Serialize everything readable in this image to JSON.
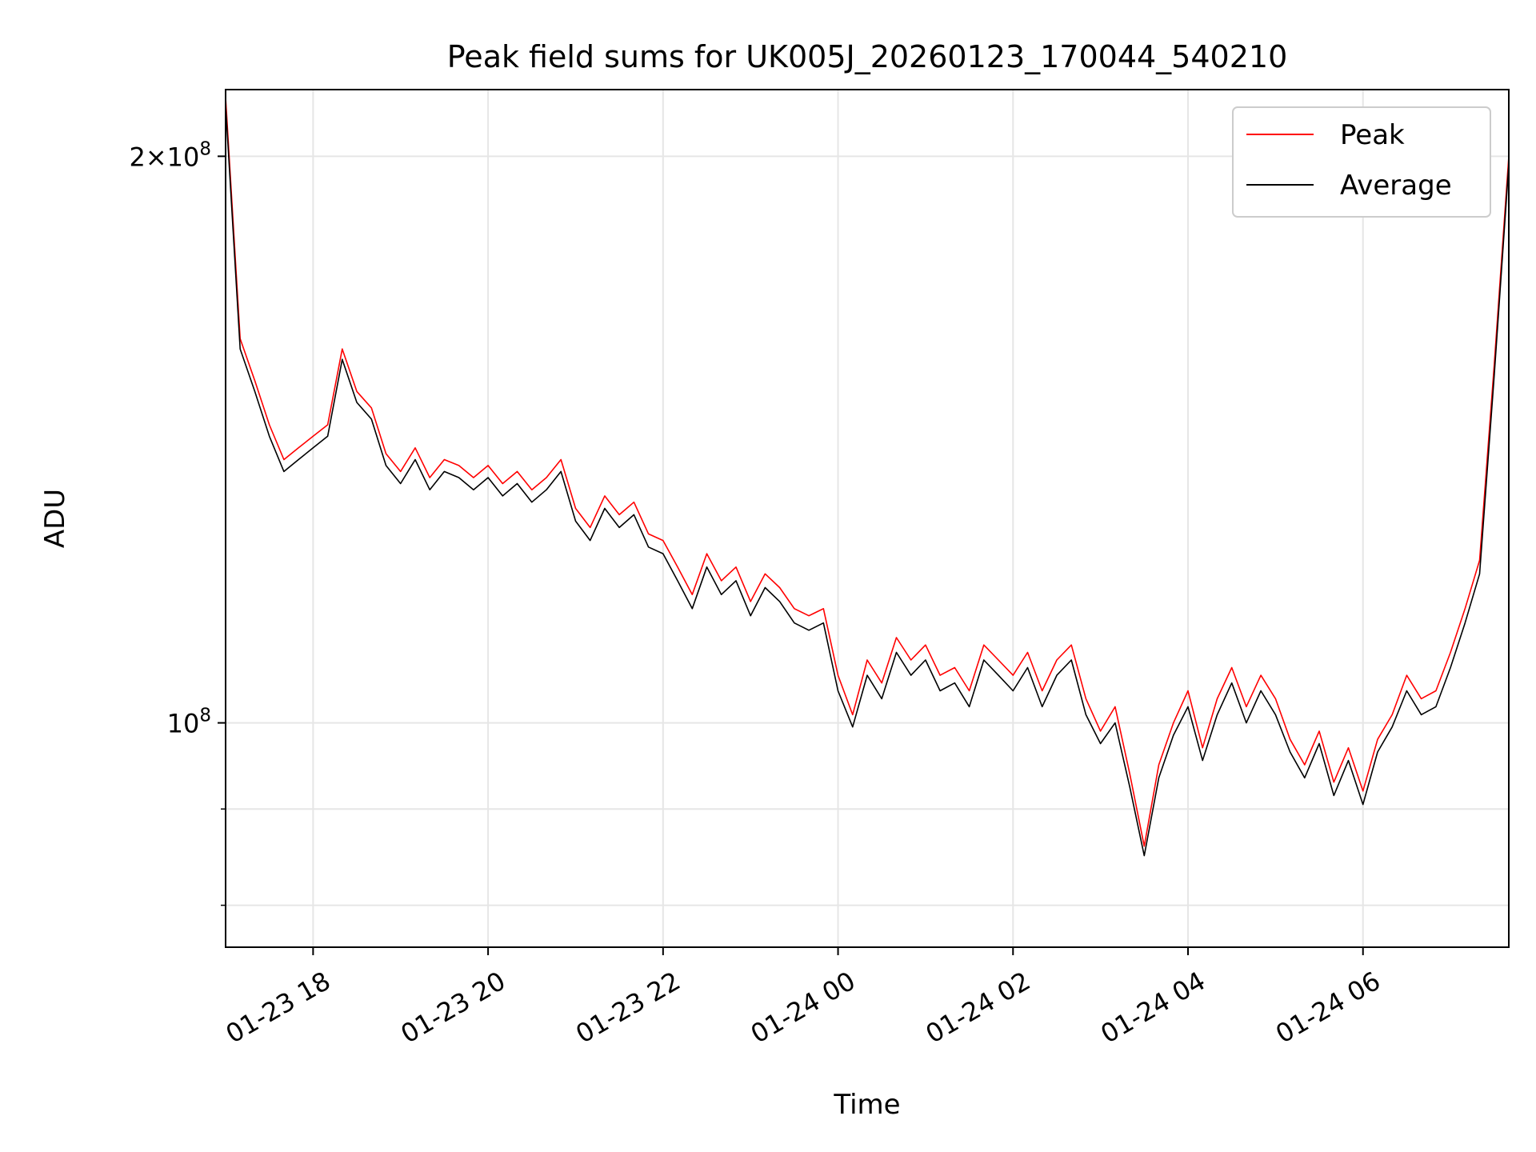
{
  "chart_data": {
    "type": "line",
    "title": "Peak field sums for UK005J_20260123_170044_540210",
    "xlabel": "Time",
    "ylabel": "ADU",
    "x_axis": {
      "kind": "datetime",
      "range": [
        "2026-01-23 17:00",
        "2026-01-24 07:40"
      ],
      "ticks": [
        {
          "at": "2026-01-23 18:00",
          "label": "01-23 18"
        },
        {
          "at": "2026-01-23 20:00",
          "label": "01-23 20"
        },
        {
          "at": "2026-01-23 22:00",
          "label": "01-23 22"
        },
        {
          "at": "2026-01-24 00:00",
          "label": "01-24 00"
        },
        {
          "at": "2026-01-24 02:00",
          "label": "01-24 02"
        },
        {
          "at": "2026-01-24 04:00",
          "label": "01-24 04"
        },
        {
          "at": "2026-01-24 06:00",
          "label": "01-24 06"
        }
      ]
    },
    "y_axis": {
      "scale": "log",
      "range": [
        76000000,
        217000000
      ],
      "labeled_ticks": [
        {
          "value": 100000000,
          "label": "10^8"
        },
        {
          "value": 200000000,
          "label": "2×10^8"
        }
      ],
      "minor_ticks": [
        90000000,
        80000000
      ]
    },
    "grid": true,
    "legend": {
      "placement": "top-right"
    },
    "colors": {
      "Peak": "#ff0000",
      "Average": "#000000",
      "grid": "#e6e6e6"
    },
    "x": [
      "2026-01-23 17:00",
      "2026-01-23 17:10",
      "2026-01-23 17:20",
      "2026-01-23 17:30",
      "2026-01-23 17:40",
      "2026-01-23 17:50",
      "2026-01-23 18:00",
      "2026-01-23 18:10",
      "2026-01-23 18:20",
      "2026-01-23 18:30",
      "2026-01-23 18:40",
      "2026-01-23 18:50",
      "2026-01-23 19:00",
      "2026-01-23 19:10",
      "2026-01-23 19:20",
      "2026-01-23 19:30",
      "2026-01-23 19:40",
      "2026-01-23 19:50",
      "2026-01-23 20:00",
      "2026-01-23 20:10",
      "2026-01-23 20:20",
      "2026-01-23 20:30",
      "2026-01-23 20:40",
      "2026-01-23 20:50",
      "2026-01-23 21:00",
      "2026-01-23 21:10",
      "2026-01-23 21:20",
      "2026-01-23 21:30",
      "2026-01-23 21:40",
      "2026-01-23 21:50",
      "2026-01-23 22:00",
      "2026-01-23 22:10",
      "2026-01-23 22:20",
      "2026-01-23 22:30",
      "2026-01-23 22:40",
      "2026-01-23 22:50",
      "2026-01-23 23:00",
      "2026-01-23 23:10",
      "2026-01-23 23:20",
      "2026-01-23 23:30",
      "2026-01-23 23:40",
      "2026-01-23 23:50",
      "2026-01-24 00:00",
      "2026-01-24 00:10",
      "2026-01-24 00:20",
      "2026-01-24 00:30",
      "2026-01-24 00:40",
      "2026-01-24 00:50",
      "2026-01-24 01:00",
      "2026-01-24 01:10",
      "2026-01-24 01:20",
      "2026-01-24 01:30",
      "2026-01-24 01:40",
      "2026-01-24 01:50",
      "2026-01-24 02:00",
      "2026-01-24 02:10",
      "2026-01-24 02:20",
      "2026-01-24 02:30",
      "2026-01-24 02:40",
      "2026-01-24 02:50",
      "2026-01-24 03:00",
      "2026-01-24 03:10",
      "2026-01-24 03:20",
      "2026-01-24 03:30",
      "2026-01-24 03:40",
      "2026-01-24 03:50",
      "2026-01-24 04:00",
      "2026-01-24 04:10",
      "2026-01-24 04:20",
      "2026-01-24 04:30",
      "2026-01-24 04:40",
      "2026-01-24 04:50",
      "2026-01-24 05:00",
      "2026-01-24 05:10",
      "2026-01-24 05:20",
      "2026-01-24 05:30",
      "2026-01-24 05:40",
      "2026-01-24 05:50",
      "2026-01-24 06:00",
      "2026-01-24 06:10",
      "2026-01-24 06:20",
      "2026-01-24 06:30",
      "2026-01-24 06:40",
      "2026-01-24 06:50",
      "2026-01-24 07:00",
      "2026-01-24 07:10",
      "2026-01-24 07:20",
      "2026-01-24 07:30",
      "2026-01-24 07:40"
    ],
    "series": [
      {
        "name": "Peak",
        "values": [
          215000000,
          160000000,
          152000000,
          144000000,
          138000000,
          140000000,
          142000000,
          144000000,
          158000000,
          150000000,
          147000000,
          139000000,
          136000000,
          140000000,
          135000000,
          138000000,
          137000000,
          135000000,
          137000000,
          134000000,
          136000000,
          133000000,
          135000000,
          138000000,
          130000000,
          127000000,
          132000000,
          129000000,
          131000000,
          126000000,
          125000000,
          121000000,
          117000000,
          123000000,
          119000000,
          121000000,
          116000000,
          120000000,
          118000000,
          115000000,
          114000000,
          115000000,
          106000000,
          101000000,
          108000000,
          105000000,
          111000000,
          108000000,
          110000000,
          106000000,
          107000000,
          104000000,
          110000000,
          108000000,
          106000000,
          109000000,
          104000000,
          108000000,
          110000000,
          103000000,
          99000000,
          102000000,
          94000000,
          86000000,
          95000000,
          100000000,
          104000000,
          97000000,
          103000000,
          107000000,
          102000000,
          106000000,
          103000000,
          98000000,
          95000000,
          99000000,
          93000000,
          97000000,
          92000000,
          98000000,
          101000000,
          106000000,
          103000000,
          104000000,
          109000000,
          115000000,
          122000000,
          155000000,
          200000000
        ]
      },
      {
        "name": "Average",
        "values": [
          213000000,
          158000000,
          150000000,
          142000000,
          136000000,
          138000000,
          140000000,
          142000000,
          156000000,
          148000000,
          145000000,
          137000000,
          134000000,
          138000000,
          133000000,
          136000000,
          135000000,
          133000000,
          135000000,
          132000000,
          134000000,
          131000000,
          133000000,
          136000000,
          128000000,
          125000000,
          130000000,
          127000000,
          129000000,
          124000000,
          123000000,
          119000000,
          115000000,
          121000000,
          117000000,
          119000000,
          114000000,
          118000000,
          116000000,
          113000000,
          112000000,
          113000000,
          104000000,
          99500000,
          106000000,
          103000000,
          109000000,
          106000000,
          108000000,
          104000000,
          105000000,
          102000000,
          108000000,
          106000000,
          104000000,
          107000000,
          102000000,
          106000000,
          108000000,
          101000000,
          97500000,
          100000000,
          92500000,
          85000000,
          93500000,
          98500000,
          102000000,
          95500000,
          101000000,
          105000000,
          100000000,
          104000000,
          101000000,
          96500000,
          93500000,
          97500000,
          91500000,
          95500000,
          90500000,
          96500000,
          99500000,
          104000000,
          101000000,
          102000000,
          107000000,
          113000000,
          120000000,
          153000000,
          198000000
        ]
      }
    ]
  }
}
